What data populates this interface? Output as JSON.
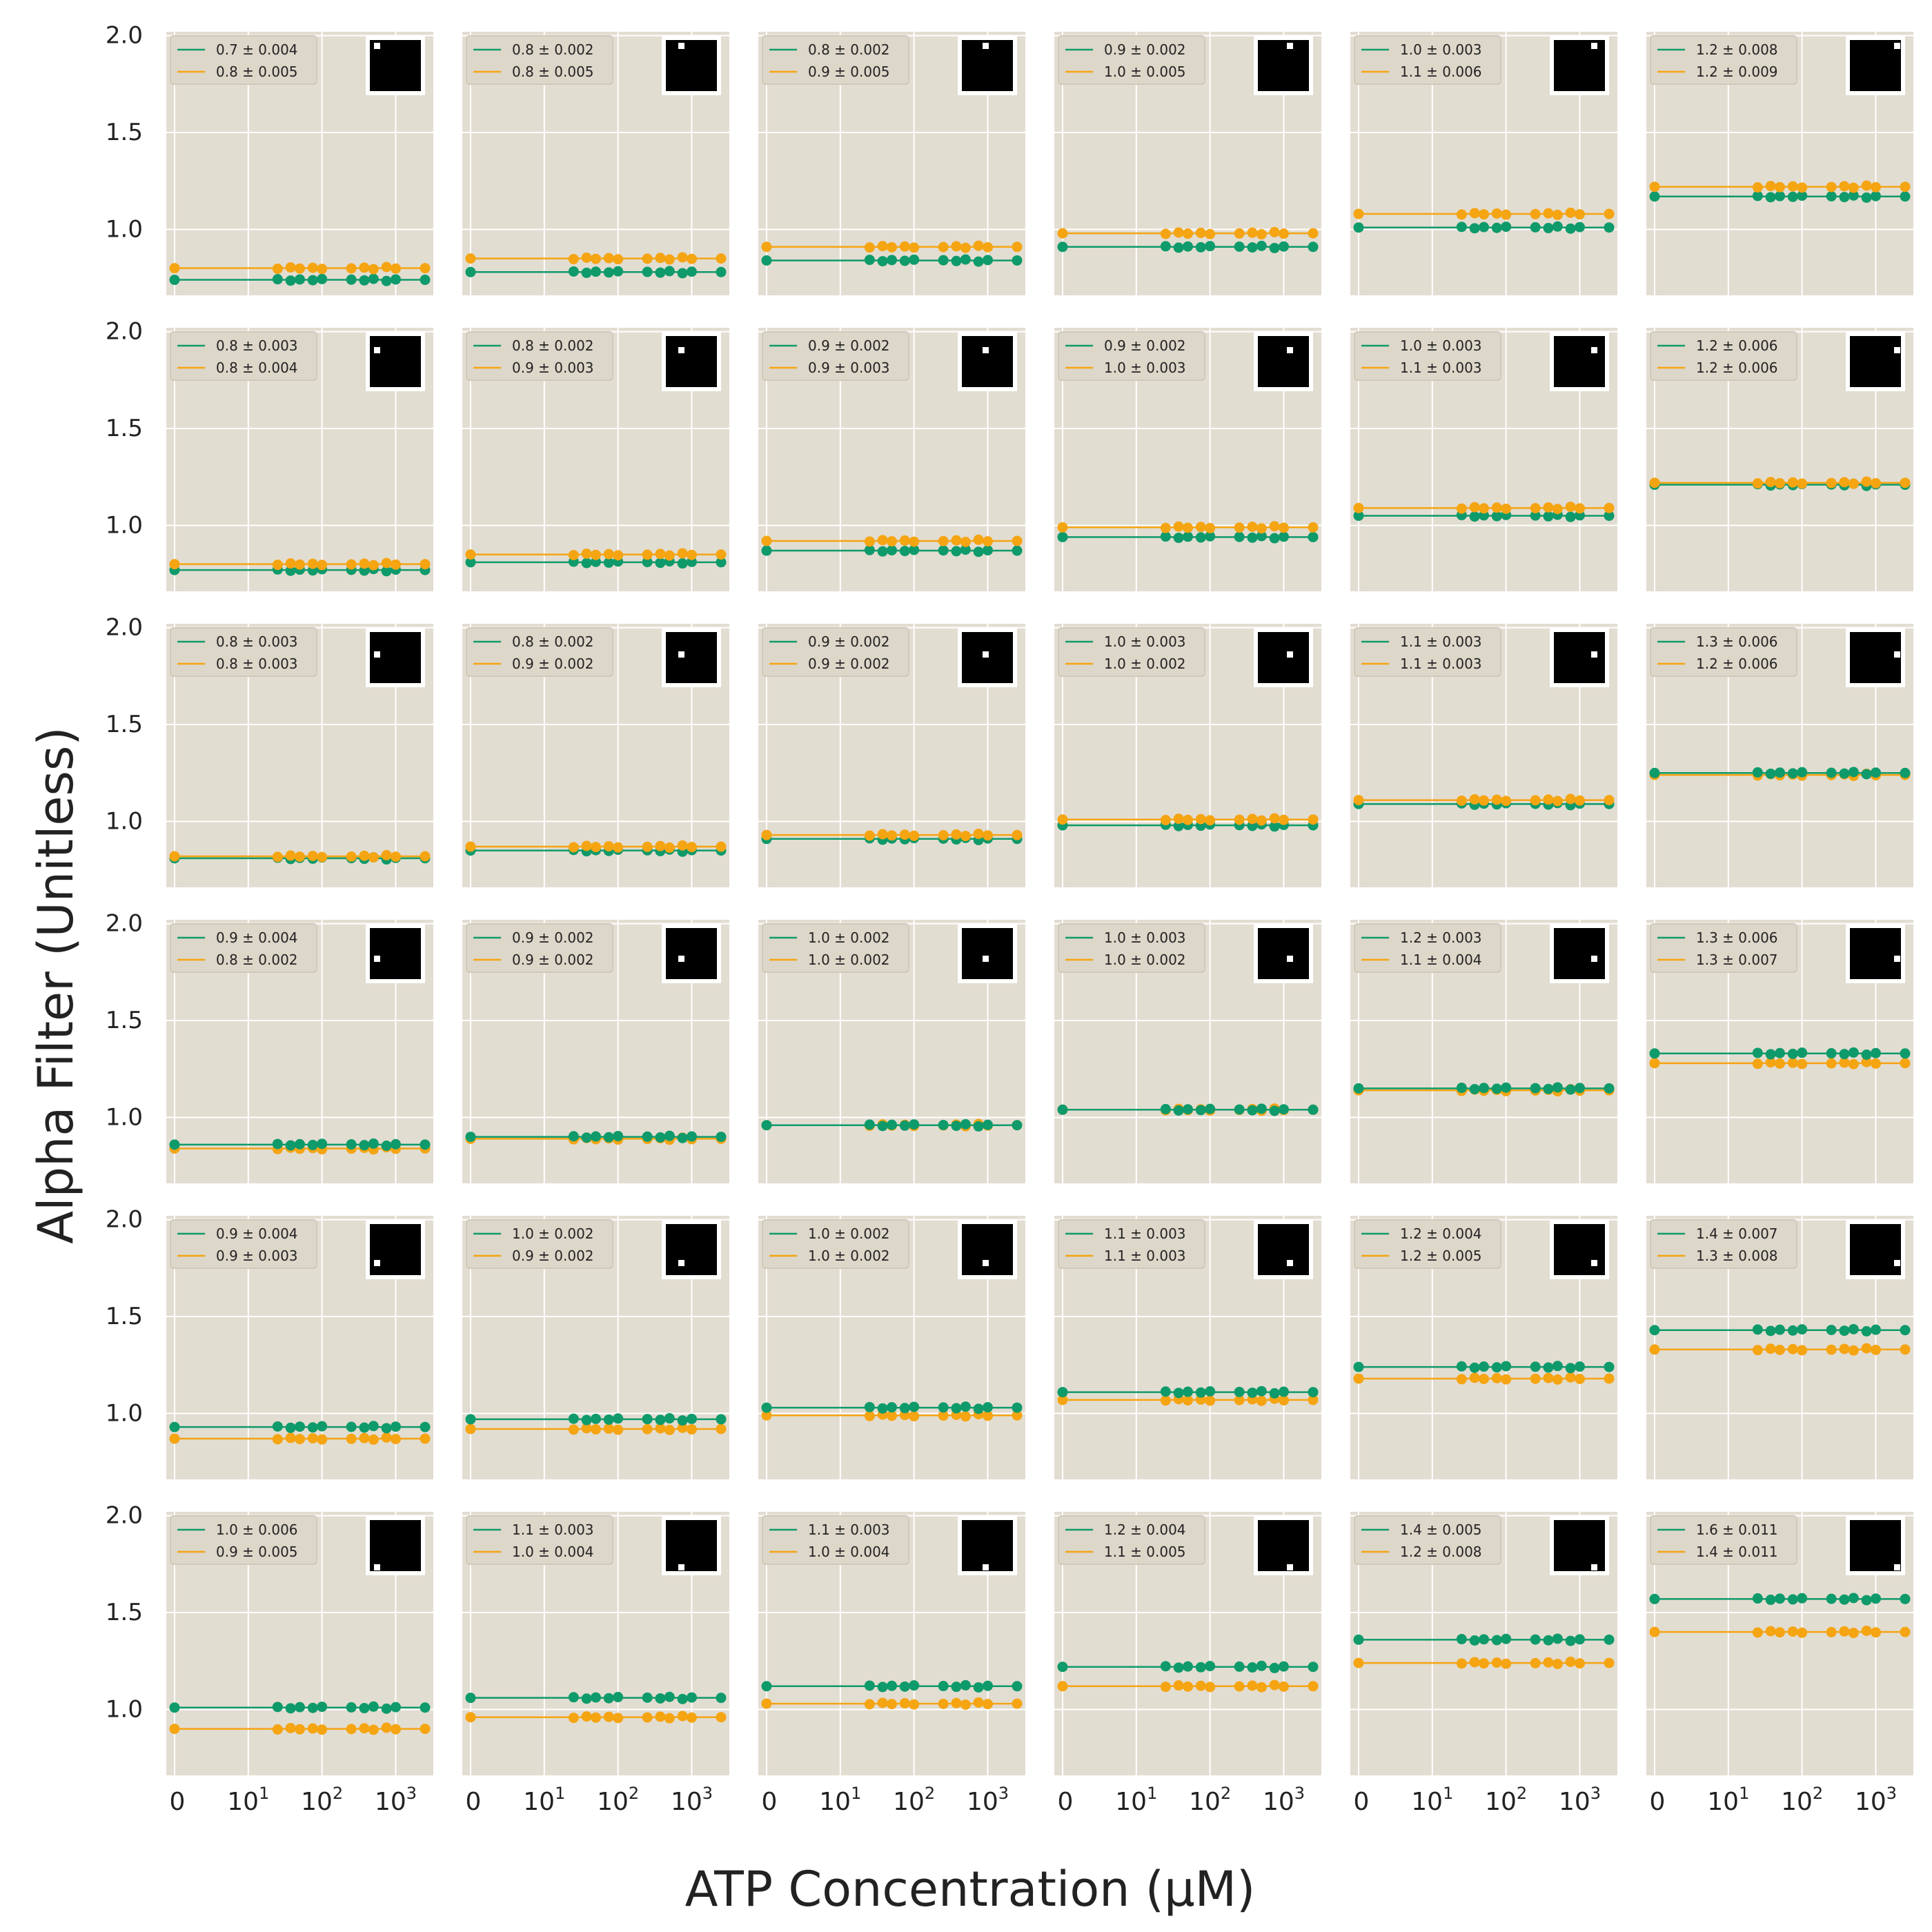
{
  "figure": {
    "xlabel": "ATP Concentration (μM)",
    "ylabel": "Alpha Filter (Unitless)",
    "colors": {
      "series_green": "#0e9a6a",
      "series_orange": "#f5a412",
      "panel_bg": "#e2ddd1",
      "grid": "#ffffff",
      "text": "#222222"
    }
  },
  "chart_data": {
    "type": "scatter",
    "grid": {
      "rows": 6,
      "cols": 6
    },
    "xscale": "symlog",
    "x_ticks": [
      "0",
      "10^1",
      "10^2",
      "10^3"
    ],
    "y_ticks": [
      "1.0",
      "1.5",
      "2.0"
    ],
    "ylim": [
      0.66,
      2.02
    ],
    "x": [
      0,
      25,
      37.5,
      50,
      75,
      100,
      250,
      375,
      500,
      750,
      1000,
      2500
    ],
    "grid_lines": true,
    "legend_position": "top-left",
    "inset": "black square image with white dot, top-right of each panel",
    "panels": [
      [
        {
          "legend": [
            "0.7 ± 0.004",
            "0.8 ± 0.005"
          ],
          "values": [
            0.74,
            0.8
          ]
        },
        {
          "legend": [
            "0.8 ± 0.002",
            "0.8 ± 0.005"
          ],
          "values": [
            0.78,
            0.85
          ]
        },
        {
          "legend": [
            "0.8 ± 0.002",
            "0.9 ± 0.005"
          ],
          "values": [
            0.84,
            0.91
          ]
        },
        {
          "legend": [
            "0.9 ± 0.002",
            "1.0 ± 0.005"
          ],
          "values": [
            0.91,
            0.98
          ]
        },
        {
          "legend": [
            "1.0 ± 0.003",
            "1.1 ± 0.006"
          ],
          "values": [
            1.01,
            1.08
          ]
        },
        {
          "legend": [
            "1.2 ± 0.008",
            "1.2 ± 0.009"
          ],
          "values": [
            1.17,
            1.22
          ]
        }
      ],
      [
        {
          "legend": [
            "0.8 ± 0.003",
            "0.8 ± 0.004"
          ],
          "values": [
            0.77,
            0.8
          ]
        },
        {
          "legend": [
            "0.8 ± 0.002",
            "0.9 ± 0.003"
          ],
          "values": [
            0.81,
            0.85
          ]
        },
        {
          "legend": [
            "0.9 ± 0.002",
            "0.9 ± 0.003"
          ],
          "values": [
            0.87,
            0.92
          ]
        },
        {
          "legend": [
            "0.9 ± 0.002",
            "1.0 ± 0.003"
          ],
          "values": [
            0.94,
            0.99
          ]
        },
        {
          "legend": [
            "1.0 ± 0.003",
            "1.1 ± 0.003"
          ],
          "values": [
            1.05,
            1.09
          ]
        },
        {
          "legend": [
            "1.2 ± 0.006",
            "1.2 ± 0.006"
          ],
          "values": [
            1.21,
            1.22
          ]
        }
      ],
      [
        {
          "legend": [
            "0.8 ± 0.003",
            "0.8 ± 0.003"
          ],
          "values": [
            0.81,
            0.82
          ]
        },
        {
          "legend": [
            "0.8 ± 0.002",
            "0.9 ± 0.002"
          ],
          "values": [
            0.85,
            0.87
          ]
        },
        {
          "legend": [
            "0.9 ± 0.002",
            "0.9 ± 0.002"
          ],
          "values": [
            0.91,
            0.93
          ]
        },
        {
          "legend": [
            "1.0 ± 0.003",
            "1.0 ± 0.002"
          ],
          "values": [
            0.98,
            1.01
          ]
        },
        {
          "legend": [
            "1.1 ± 0.003",
            "1.1 ± 0.003"
          ],
          "values": [
            1.09,
            1.11
          ]
        },
        {
          "legend": [
            "1.3 ± 0.006",
            "1.2 ± 0.006"
          ],
          "values": [
            1.25,
            1.24
          ]
        }
      ],
      [
        {
          "legend": [
            "0.9 ± 0.004",
            "0.8 ± 0.002"
          ],
          "values": [
            0.86,
            0.84
          ]
        },
        {
          "legend": [
            "0.9 ± 0.002",
            "0.9 ± 0.002"
          ],
          "values": [
            0.9,
            0.89
          ]
        },
        {
          "legend": [
            "1.0 ± 0.002",
            "1.0 ± 0.002"
          ],
          "values": [
            0.96,
            0.96
          ]
        },
        {
          "legend": [
            "1.0 ± 0.003",
            "1.0 ± 0.002"
          ],
          "values": [
            1.04,
            1.04
          ]
        },
        {
          "legend": [
            "1.2 ± 0.003",
            "1.1 ± 0.004"
          ],
          "values": [
            1.15,
            1.14
          ]
        },
        {
          "legend": [
            "1.3 ± 0.006",
            "1.3 ± 0.007"
          ],
          "values": [
            1.33,
            1.28
          ]
        }
      ],
      [
        {
          "legend": [
            "0.9 ± 0.004",
            "0.9 ± 0.003"
          ],
          "values": [
            0.93,
            0.87
          ]
        },
        {
          "legend": [
            "1.0 ± 0.002",
            "0.9 ± 0.002"
          ],
          "values": [
            0.97,
            0.92
          ]
        },
        {
          "legend": [
            "1.0 ± 0.002",
            "1.0 ± 0.002"
          ],
          "values": [
            1.03,
            0.99
          ]
        },
        {
          "legend": [
            "1.1 ± 0.003",
            "1.1 ± 0.003"
          ],
          "values": [
            1.11,
            1.07
          ]
        },
        {
          "legend": [
            "1.2 ± 0.004",
            "1.2 ± 0.005"
          ],
          "values": [
            1.24,
            1.18
          ]
        },
        {
          "legend": [
            "1.4 ± 0.007",
            "1.3 ± 0.008"
          ],
          "values": [
            1.43,
            1.33
          ]
        }
      ],
      [
        {
          "legend": [
            "1.0 ± 0.006",
            "0.9 ± 0.005"
          ],
          "values": [
            1.01,
            0.9
          ]
        },
        {
          "legend": [
            "1.1 ± 0.003",
            "1.0 ± 0.004"
          ],
          "values": [
            1.06,
            0.96
          ]
        },
        {
          "legend": [
            "1.1 ± 0.003",
            "1.0 ± 0.004"
          ],
          "values": [
            1.12,
            1.03
          ]
        },
        {
          "legend": [
            "1.2 ± 0.004",
            "1.1 ± 0.005"
          ],
          "values": [
            1.22,
            1.12
          ]
        },
        {
          "legend": [
            "1.4 ± 0.005",
            "1.2 ± 0.008"
          ],
          "values": [
            1.36,
            1.24
          ]
        },
        {
          "legend": [
            "1.6 ± 0.011",
            "1.4 ± 0.011"
          ],
          "values": [
            1.57,
            1.4
          ]
        }
      ]
    ]
  }
}
